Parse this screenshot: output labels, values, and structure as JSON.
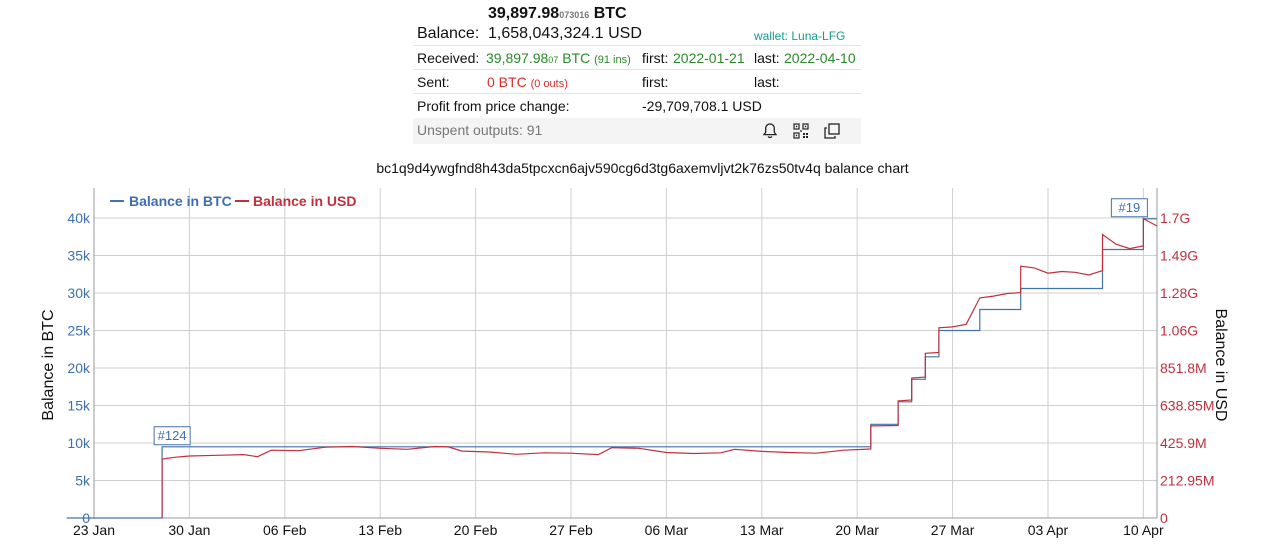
{
  "summary": {
    "btc_main": "39,897.98",
    "btc_small": "073016",
    "btc_unit": "BTC",
    "balance_label": "Balance:",
    "balance_usd": "1,658,043,324.1 USD",
    "wallet_link": "wallet: Luna-LFG",
    "received_label": "Received:",
    "received_main": "39,897.98",
    "received_small": "07",
    "received_unit": "BTC",
    "received_ins": "(91 ins)",
    "first_label": "first:",
    "first_received": "2022-01-21",
    "last_label": "last:",
    "last_received": "2022-04-10",
    "sent_label": "Sent:",
    "sent_value": "0 BTC",
    "sent_outs": "(0 outs)",
    "sent_first_label": "first:",
    "sent_last_label": "last:",
    "profit_label": "Profit from price change:",
    "profit_value": "-29,709,708.1 USD",
    "unspent_label": "Unspent outputs: 91",
    "icons": [
      "bell-icon",
      "qr-code-icon",
      "copy-icon"
    ]
  },
  "chart_title": "bc1q9d4ywgfnd8h43da5tpcxcn6ajv590cg6d3tg6axemvljvt2k76zs50tv4q balance chart",
  "chart_data": {
    "type": "line",
    "x_ticks": [
      "23 Jan",
      "30 Jan",
      "06 Feb",
      "13 Feb",
      "20 Feb",
      "27 Feb",
      "06 Mar",
      "13 Mar",
      "20 Mar",
      "27 Mar",
      "03 Apr",
      "10 Apr"
    ],
    "x_range": [
      "2022-01-23",
      "2022-04-11"
    ],
    "ylabel_left": "Balance in BTC",
    "ylabel_right": "Balance in USD",
    "y_left_ticks": [
      "0",
      "5k",
      "10k",
      "15k",
      "20k",
      "25k",
      "30k",
      "35k",
      "40k"
    ],
    "y_left_range": [
      0,
      40000
    ],
    "y_right_ticks": [
      "0",
      "212.95M",
      "425.9M",
      "638.85M",
      "851.8M",
      "1.06G",
      "1.28G",
      "1.49G",
      "1.7G"
    ],
    "y_right_range": [
      0,
      1703600000
    ],
    "legend": [
      "Balance in BTC",
      "Balance in USD"
    ],
    "legend_placement": "top-left",
    "grid": true,
    "colors": {
      "btc": "#4572a7",
      "usd": "#c0303c"
    },
    "annotations": [
      {
        "label": "#124",
        "date": "2022-01-28"
      },
      {
        "label": "#19",
        "date": "2022-04-10"
      }
    ],
    "series": [
      {
        "name": "Balance in BTC",
        "points": [
          [
            "2022-01-21",
            0
          ],
          [
            "2022-01-28",
            0
          ],
          [
            "2022-01-28",
            9500
          ],
          [
            "2022-03-21",
            9500
          ],
          [
            "2022-03-21",
            12500
          ],
          [
            "2022-03-23",
            12500
          ],
          [
            "2022-03-23",
            15500
          ],
          [
            "2022-03-24",
            15500
          ],
          [
            "2022-03-24",
            18500
          ],
          [
            "2022-03-25",
            18500
          ],
          [
            "2022-03-25",
            21500
          ],
          [
            "2022-03-26",
            21500
          ],
          [
            "2022-03-26",
            25000
          ],
          [
            "2022-03-29",
            25000
          ],
          [
            "2022-03-29",
            27800
          ],
          [
            "2022-04-01",
            27800
          ],
          [
            "2022-04-01",
            30600
          ],
          [
            "2022-04-07",
            30600
          ],
          [
            "2022-04-07",
            35800
          ],
          [
            "2022-04-10",
            35800
          ],
          [
            "2022-04-10",
            39898
          ],
          [
            "2022-04-11",
            39898
          ]
        ]
      },
      {
        "name": "Balance in USD",
        "points": [
          [
            "2022-01-28",
            0
          ],
          [
            "2022-01-28",
            335000000
          ],
          [
            "2022-01-29",
            345000000
          ],
          [
            "2022-01-30",
            352000000
          ],
          [
            "2022-02-01",
            356000000
          ],
          [
            "2022-02-03",
            360000000
          ],
          [
            "2022-02-04",
            348000000
          ],
          [
            "2022-02-05",
            385000000
          ],
          [
            "2022-02-07",
            382000000
          ],
          [
            "2022-02-09",
            402000000
          ],
          [
            "2022-02-11",
            406000000
          ],
          [
            "2022-02-13",
            396000000
          ],
          [
            "2022-02-15",
            390000000
          ],
          [
            "2022-02-17",
            406000000
          ],
          [
            "2022-02-18",
            404000000
          ],
          [
            "2022-02-19",
            380000000
          ],
          [
            "2022-02-21",
            375000000
          ],
          [
            "2022-02-23",
            362000000
          ],
          [
            "2022-02-25",
            370000000
          ],
          [
            "2022-02-27",
            368000000
          ],
          [
            "2022-03-01",
            360000000
          ],
          [
            "2022-03-02",
            400000000
          ],
          [
            "2022-03-04",
            396000000
          ],
          [
            "2022-03-06",
            372000000
          ],
          [
            "2022-03-08",
            366000000
          ],
          [
            "2022-03-10",
            370000000
          ],
          [
            "2022-03-11",
            390000000
          ],
          [
            "2022-03-13",
            378000000
          ],
          [
            "2022-03-15",
            372000000
          ],
          [
            "2022-03-17",
            368000000
          ],
          [
            "2022-03-19",
            385000000
          ],
          [
            "2022-03-21",
            392000000
          ],
          [
            "2022-03-21",
            523000000
          ],
          [
            "2022-03-23",
            525000000
          ],
          [
            "2022-03-23",
            665000000
          ],
          [
            "2022-03-24",
            670000000
          ],
          [
            "2022-03-24",
            795000000
          ],
          [
            "2022-03-25",
            800000000
          ],
          [
            "2022-03-25",
            935000000
          ],
          [
            "2022-03-26",
            940000000
          ],
          [
            "2022-03-26",
            1080000000
          ],
          [
            "2022-03-27",
            1085000000
          ],
          [
            "2022-03-28",
            1100000000
          ],
          [
            "2022-03-29",
            1250000000
          ],
          [
            "2022-03-30",
            1260000000
          ],
          [
            "2022-03-31",
            1275000000
          ],
          [
            "2022-04-01",
            1280000000
          ],
          [
            "2022-04-01",
            1430000000
          ],
          [
            "2022-04-02",
            1420000000
          ],
          [
            "2022-04-03",
            1390000000
          ],
          [
            "2022-04-04",
            1400000000
          ],
          [
            "2022-04-05",
            1395000000
          ],
          [
            "2022-04-06",
            1380000000
          ],
          [
            "2022-04-07",
            1405000000
          ],
          [
            "2022-04-07",
            1610000000
          ],
          [
            "2022-04-08",
            1555000000
          ],
          [
            "2022-04-09",
            1530000000
          ],
          [
            "2022-04-10",
            1545000000
          ],
          [
            "2022-04-10",
            1700000000
          ],
          [
            "2022-04-11",
            1658000000
          ]
        ]
      }
    ]
  }
}
